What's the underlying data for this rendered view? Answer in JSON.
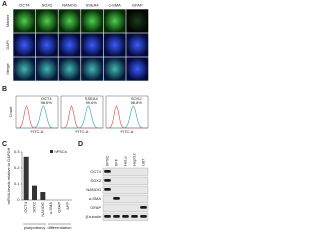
{
  "panel_labels": [
    "A",
    "B",
    "C",
    "D"
  ],
  "panels": {
    "a": {
      "columns": [
        "OCT4",
        "SOX2",
        "NANOG",
        "SSEA4",
        "α-SMA",
        "GFAP"
      ],
      "rows": [
        "Marker",
        "DAPI",
        "Merge"
      ]
    },
    "b": {
      "plots": [
        {
          "marker": "OCT4",
          "percent": "98.6%"
        },
        {
          "marker": "SSEA4",
          "percent": "99.6%"
        },
        {
          "marker": "SOX2",
          "percent": "98.8%"
        }
      ],
      "ylabel": "Count",
      "xlabel": "FITC-A"
    },
    "d": {
      "lanes": [
        "hPSC",
        "hFF",
        "HeLa",
        "HepG2",
        "U87"
      ],
      "proteins": [
        "OCT4",
        "SOX2",
        "NANOG",
        "α-SMA",
        "GFAP",
        "β-tubulin"
      ]
    }
  },
  "chart_data": {
    "type": "bar",
    "ylabel": "mRNA levels relative to GAPDH",
    "categories": [
      "OCT4",
      "SOX2",
      "NANOG",
      "α-SMA",
      "GFAP",
      "AFP"
    ],
    "groups": [
      "pluripotency",
      "differentiation"
    ],
    "series": [
      {
        "name": "hPSCs",
        "color": "#333333",
        "values": [
          0.27,
          0.09,
          0.05,
          0,
          0,
          0
        ]
      }
    ],
    "ylim": [
      0,
      0.3
    ],
    "yticks": [
      0,
      0.1,
      0.2,
      0.3
    ]
  }
}
